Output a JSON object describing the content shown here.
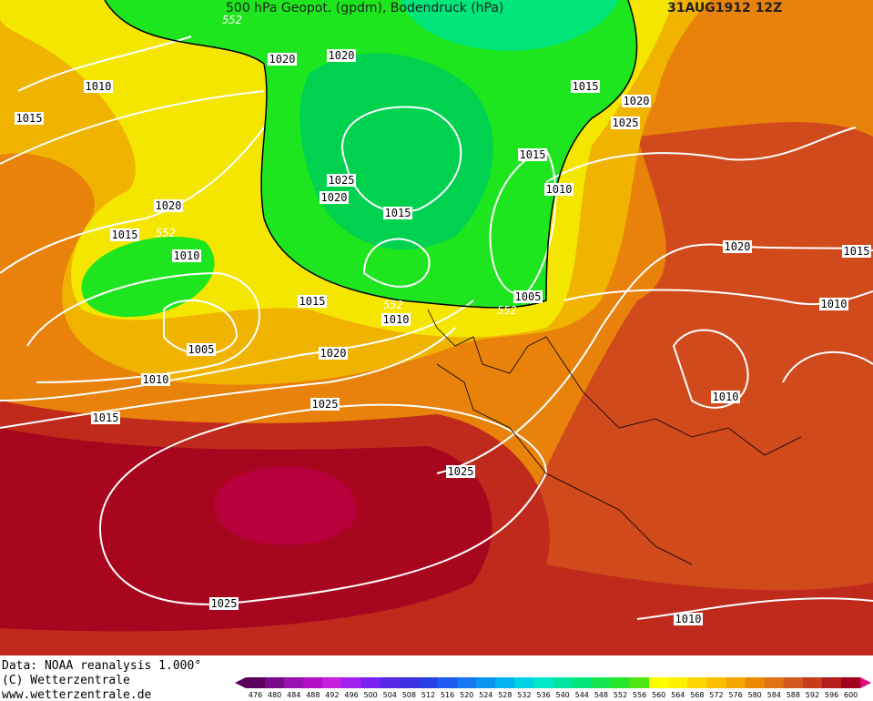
{
  "header": {
    "title": "500 hPa Geopot. (gpdm), Bodendruck (hPa)",
    "date": "31AUG1912 12Z"
  },
  "map": {
    "isobar_labels": [
      552,
      1020,
      1020,
      1010,
      1015,
      1015,
      1020,
      1025,
      1015,
      1025,
      1020,
      1010,
      1020,
      1015,
      1015,
      552,
      1010,
      1020,
      1015,
      1010,
      1015,
      1005,
      552,
      552,
      1010,
      1005,
      1020,
      1010,
      1010,
      1025,
      1015,
      1025,
      1025,
      1010
    ]
  },
  "footer": {
    "line1": "Data: NOAA reanalysis 1.000°",
    "line2": "(C) Wetterzentrale",
    "line3": "www.wetterzentrale.de"
  },
  "colorbar": {
    "ticks": [
      476,
      480,
      484,
      488,
      492,
      496,
      500,
      504,
      508,
      512,
      516,
      520,
      524,
      528,
      532,
      536,
      540,
      544,
      548,
      552,
      556,
      560,
      564,
      568,
      572,
      576,
      580,
      584,
      588,
      592,
      596,
      600
    ],
    "colors": [
      "#5a005a",
      "#7a0a8a",
      "#9a10b0",
      "#b410c8",
      "#c81ee0",
      "#a020f0",
      "#7a20f0",
      "#5a28e8",
      "#3c30e0",
      "#2840e8",
      "#1e5af0",
      "#1478f0",
      "#0a96f0",
      "#00b4f0",
      "#00d2e6",
      "#00e6c8",
      "#00e6a0",
      "#00e678",
      "#14e650",
      "#28e628",
      "#50e614",
      "#ffff00",
      "#fff000",
      "#ffd700",
      "#ffbe00",
      "#f5a500",
      "#eb8c00",
      "#e17314",
      "#d25a1e",
      "#c83c1e",
      "#b41e1e",
      "#a0001e"
    ]
  }
}
